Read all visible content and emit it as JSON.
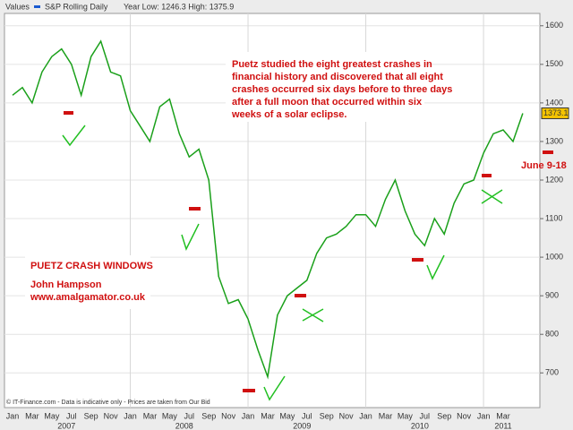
{
  "chart_data": {
    "type": "line",
    "legend_label": "Values",
    "series_name": "S&P Rolling Daily",
    "range_note": "Year Low: 1246.3 High: 1375.9",
    "color": "#1aa01a",
    "categories": [
      "Jan",
      null,
      "Mar",
      null,
      "May",
      null,
      "Jul",
      null,
      "Sep",
      null,
      "Nov",
      null,
      "Jan",
      null,
      "Mar",
      null,
      "May",
      null,
      "Jul",
      null,
      "Sep",
      null,
      "Nov",
      null,
      "Jan",
      null,
      "Mar",
      null,
      "May",
      null,
      "Jul",
      null,
      "Sep",
      null,
      "Nov",
      null,
      "Jan",
      null,
      "Mar",
      null,
      "May",
      null,
      "Jul",
      null,
      "Sep",
      null,
      "Nov",
      null,
      "Jan",
      null,
      "Mar",
      null,
      null
    ],
    "years": [
      "2007",
      "2008",
      "2009",
      "2010",
      "2011"
    ],
    "values": [
      1420,
      1440,
      1400,
      1480,
      1520,
      1540,
      1500,
      1420,
      1520,
      1560,
      1480,
      1470,
      1380,
      1340,
      1300,
      1390,
      1410,
      1320,
      1260,
      1280,
      1200,
      950,
      880,
      890,
      840,
      760,
      690,
      850,
      900,
      920,
      940,
      1010,
      1050,
      1060,
      1080,
      1110,
      1110,
      1080,
      1150,
      1200,
      1120,
      1060,
      1030,
      1100,
      1060,
      1140,
      1190,
      1200,
      1270,
      1320,
      1330,
      1300,
      1373.1
    ],
    "ylim": [
      610,
      1632
    ],
    "yticks": [
      700,
      800,
      900,
      1000,
      1100,
      1200,
      1300,
      1400,
      1500,
      1600
    ],
    "grid": true,
    "annotations": {
      "note": [
        "Puetz studied the eight greatest crashes in",
        "financial history and discovered that all eight",
        "crashes occurred six days before to three days",
        "after a full moon that occurred within six",
        "weeks of a solar eclipse."
      ],
      "windows_title": "PUETZ CRASH WINDOWS",
      "author": "John Hampson",
      "site": "www.amalgamator.co.uk",
      "window_dates": "June 9-18"
    },
    "source": "© IT-Finance.com - Data is indicative only - Prices are taken from Our Bid"
  }
}
